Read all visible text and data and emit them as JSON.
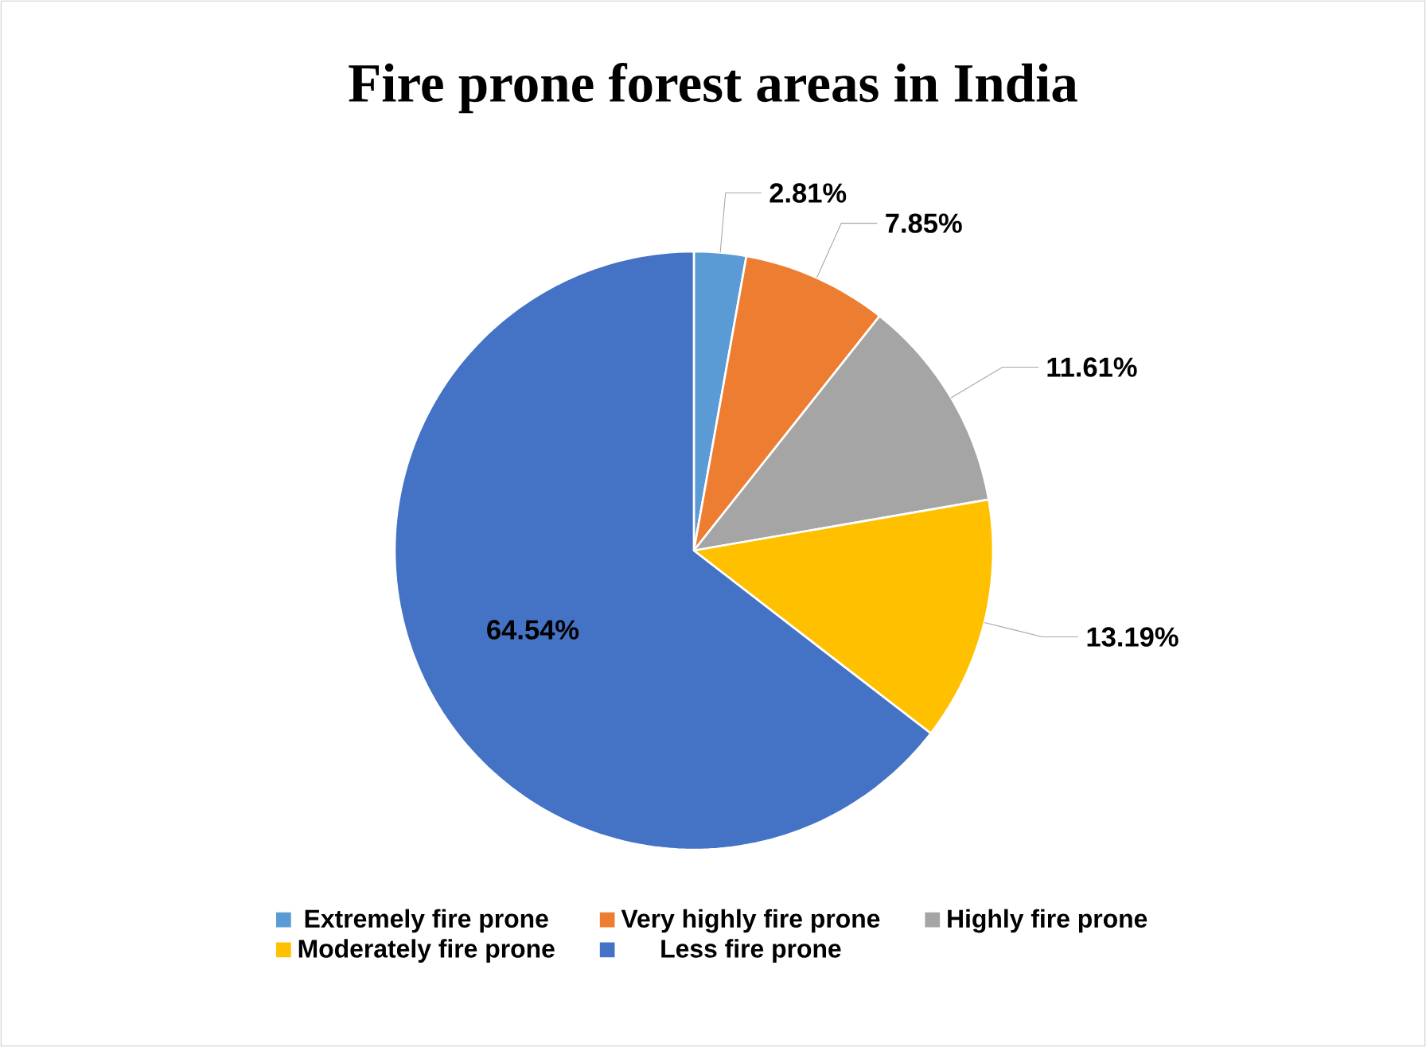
{
  "chart_data": {
    "type": "pie",
    "title": "Fire prone forest areas in India",
    "categories": [
      "Extremely fire prone",
      "Very highly fire prone",
      "Highly fire prone",
      "Moderately fire prone",
      "Less fire prone"
    ],
    "values": [
      2.81,
      7.85,
      11.61,
      13.19,
      64.54
    ],
    "value_labels": [
      "2.81%",
      "7.85%",
      "11.61%",
      "13.19%",
      "64.54%"
    ],
    "colors": [
      "#5b9bd5",
      "#ed7d31",
      "#a5a5a5",
      "#ffc000",
      "#4472c4"
    ],
    "legend": "bottom"
  }
}
